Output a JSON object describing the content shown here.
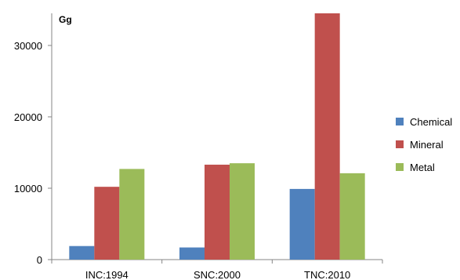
{
  "chart_data": {
    "type": "bar",
    "unit_label": "Gg",
    "categories": [
      "INC:1994",
      "SNC:2000",
      "TNC:2010"
    ],
    "series": [
      {
        "name": "Chemical",
        "color": "#4f81bd",
        "values": [
          1900,
          1700,
          9900
        ]
      },
      {
        "name": "Mineral",
        "color": "#c0504d",
        "values": [
          10200,
          13300,
          34500
        ]
      },
      {
        "name": "Metal",
        "color": "#9bbb59",
        "values": [
          12700,
          13500,
          12100
        ]
      }
    ],
    "y_ticks": [
      0,
      10000,
      20000,
      30000
    ],
    "y_tick_labels": [
      "0",
      "10000",
      "20000",
      "30000"
    ],
    "ylim": [
      0,
      34500
    ],
    "grid": false,
    "legend_position": "right"
  }
}
